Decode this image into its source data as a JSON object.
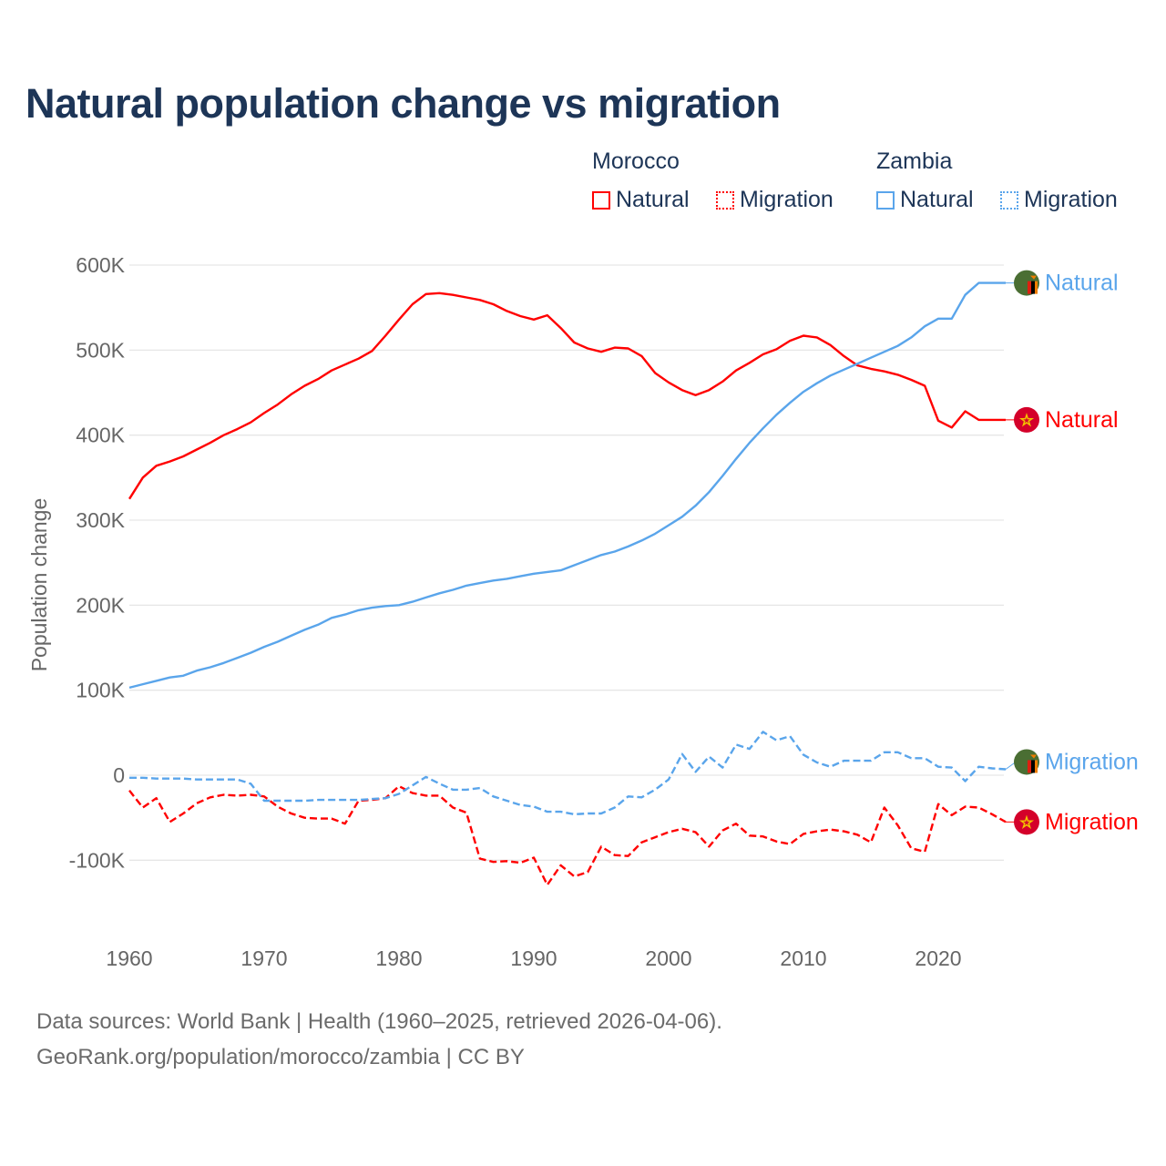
{
  "title": "Natural population change vs migration",
  "legend": {
    "groups": [
      {
        "name": "Morocco",
        "color": "#ff0000",
        "items": [
          "Natural",
          "Migration"
        ]
      },
      {
        "name": "Zambia",
        "color": "#5aa5eb",
        "items": [
          "Natural",
          "Migration"
        ]
      }
    ]
  },
  "footer": {
    "line1": "Data sources: World Bank | Health (1960–2025, retrieved 2026-04-06).",
    "line2": "GeoRank.org/population/morocco/zambia | CC BY"
  },
  "chart_data": {
    "type": "line",
    "title": "Natural population change vs migration",
    "xlabel": "",
    "ylabel": "Population change",
    "xlim": [
      1960,
      2025
    ],
    "ylim": [
      -150000,
      600000
    ],
    "x_ticks": [
      1960,
      1970,
      1980,
      1990,
      2000,
      2010,
      2020
    ],
    "x_tick_labels": [
      "1960",
      "1970",
      "1980",
      "1990",
      "2000",
      "2010",
      "2020"
    ],
    "y_ticks": [
      -100000,
      0,
      100000,
      200000,
      300000,
      400000,
      500000,
      600000
    ],
    "y_tick_labels": [
      "-100K",
      "0",
      "100K",
      "200K",
      "300K",
      "400K",
      "500K",
      "600K"
    ],
    "grid": true,
    "legend_position": "top-right",
    "x_start": 1960,
    "series": [
      {
        "name": "Morocco Natural",
        "country": "Morocco",
        "kind": "Natural",
        "color": "#ff0000",
        "dash": false,
        "end_label": "Natural",
        "values_k": [
          325,
          350,
          364,
          369,
          375,
          383,
          391,
          400,
          407,
          415,
          426,
          436,
          448,
          458,
          466,
          476,
          483,
          490,
          499,
          517,
          536,
          554,
          566,
          567,
          565,
          562,
          559,
          554,
          546,
          540,
          536,
          541,
          526,
          509,
          502,
          498,
          503,
          502,
          493,
          473,
          462,
          453,
          447,
          453,
          463,
          476,
          485,
          495,
          501,
          511,
          517,
          515,
          506,
          493,
          482,
          478,
          475,
          471,
          465,
          458,
          417,
          409,
          428,
          418,
          418,
          418
        ]
      },
      {
        "name": "Zambia Natural",
        "country": "Zambia",
        "kind": "Natural",
        "color": "#5aa5eb",
        "dash": false,
        "end_label": "Natural",
        "values_k": [
          103,
          107,
          111,
          115,
          117,
          123,
          127,
          132,
          138,
          144,
          151,
          157,
          164,
          171,
          177,
          185,
          189,
          194,
          197,
          199,
          200,
          204,
          209,
          214,
          218,
          223,
          226,
          229,
          231,
          234,
          237,
          239,
          241,
          247,
          253,
          259,
          263,
          269,
          276,
          284,
          294,
          304,
          317,
          333,
          352,
          372,
          391,
          408,
          424,
          438,
          451,
          461,
          470,
          477,
          484,
          491,
          498,
          505,
          515,
          528,
          537,
          537,
          565,
          579,
          579,
          579
        ]
      },
      {
        "name": "Morocco Migration",
        "country": "Morocco",
        "kind": "Migration",
        "color": "#ff0000",
        "dash": true,
        "end_label": "Migration",
        "values_k": [
          -18,
          -38,
          -27,
          -55,
          -45,
          -33,
          -26,
          -23,
          -24,
          -23,
          -25,
          -37,
          -45,
          -50,
          -51,
          -51,
          -57,
          -30,
          -29,
          -27,
          -13,
          -21,
          -24,
          -24,
          -38,
          -44,
          -98,
          -102,
          -101,
          -103,
          -97,
          -129,
          -106,
          -119,
          -114,
          -84,
          -94,
          -95,
          -79,
          -73,
          -67,
          -63,
          -67,
          -84,
          -65,
          -57,
          -71,
          -72,
          -78,
          -81,
          -69,
          -66,
          -64,
          -66,
          -70,
          -79,
          -38,
          -59,
          -86,
          -90,
          -34,
          -47,
          -37,
          -38,
          -46,
          -55
        ]
      },
      {
        "name": "Zambia Migration",
        "country": "Zambia",
        "kind": "Migration",
        "color": "#5aa5eb",
        "dash": true,
        "end_label": "Migration",
        "values_k": [
          -3,
          -3,
          -4,
          -4,
          -4,
          -5,
          -5,
          -5,
          -5,
          -10,
          -30,
          -30,
          -30,
          -30,
          -29,
          -29,
          -29,
          -29,
          -28,
          -27,
          -22,
          -12,
          -2,
          -10,
          -17,
          -17,
          -15,
          -25,
          -30,
          -35,
          -37,
          -43,
          -43,
          -46,
          -45,
          -45,
          -38,
          -25,
          -26,
          -17,
          -5,
          25,
          4,
          22,
          9,
          36,
          31,
          51,
          41,
          46,
          24,
          15,
          10,
          17,
          17,
          17,
          27,
          27,
          20,
          20,
          10,
          9,
          -7,
          10,
          8,
          7
        ]
      }
    ]
  }
}
